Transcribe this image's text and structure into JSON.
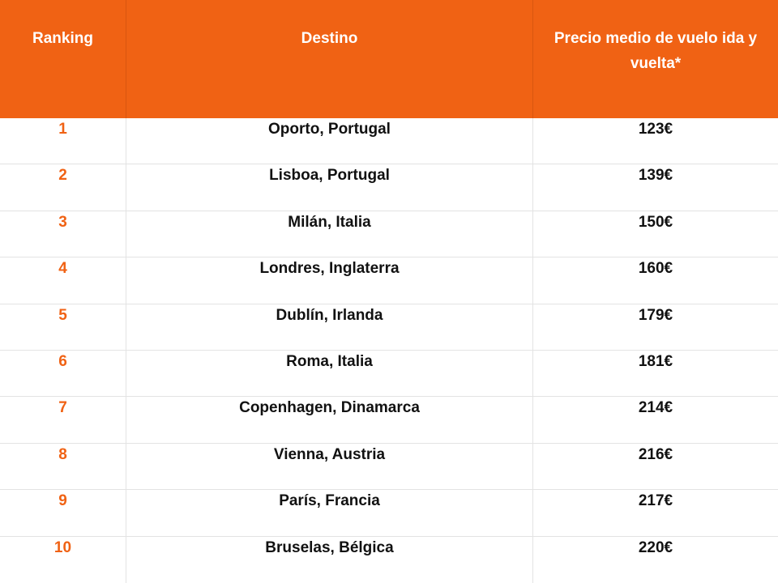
{
  "table": {
    "headers": {
      "ranking": "Ranking",
      "destino": "Destino",
      "precio": "Precio medio de vuelo ida y vuelta*"
    },
    "rows": [
      {
        "rank": "1",
        "destino": "Oporto, Portugal",
        "precio": "123€"
      },
      {
        "rank": "2",
        "destino": "Lisboa, Portugal",
        "precio": "139€"
      },
      {
        "rank": "3",
        "destino": "Milán, Italia",
        "precio": "150€"
      },
      {
        "rank": "4",
        "destino": "Londres, Inglaterra",
        "precio": "160€"
      },
      {
        "rank": "5",
        "destino": "Dublín, Irlanda",
        "precio": "179€"
      },
      {
        "rank": "6",
        "destino": "Roma, Italia",
        "precio": "181€"
      },
      {
        "rank": "7",
        "destino": "Copenhagen, Dinamarca",
        "precio": "214€"
      },
      {
        "rank": "8",
        "destino": "Vienna, Austria",
        "precio": "216€"
      },
      {
        "rank": "9",
        "destino": "París, Francia",
        "precio": "217€"
      },
      {
        "rank": "10",
        "destino": "Bruselas, Bélgica",
        "precio": "220€"
      }
    ]
  },
  "colors": {
    "header_background": "#f06214",
    "header_text": "#ffffff",
    "rank_text": "#f06214",
    "body_text": "#111111"
  }
}
